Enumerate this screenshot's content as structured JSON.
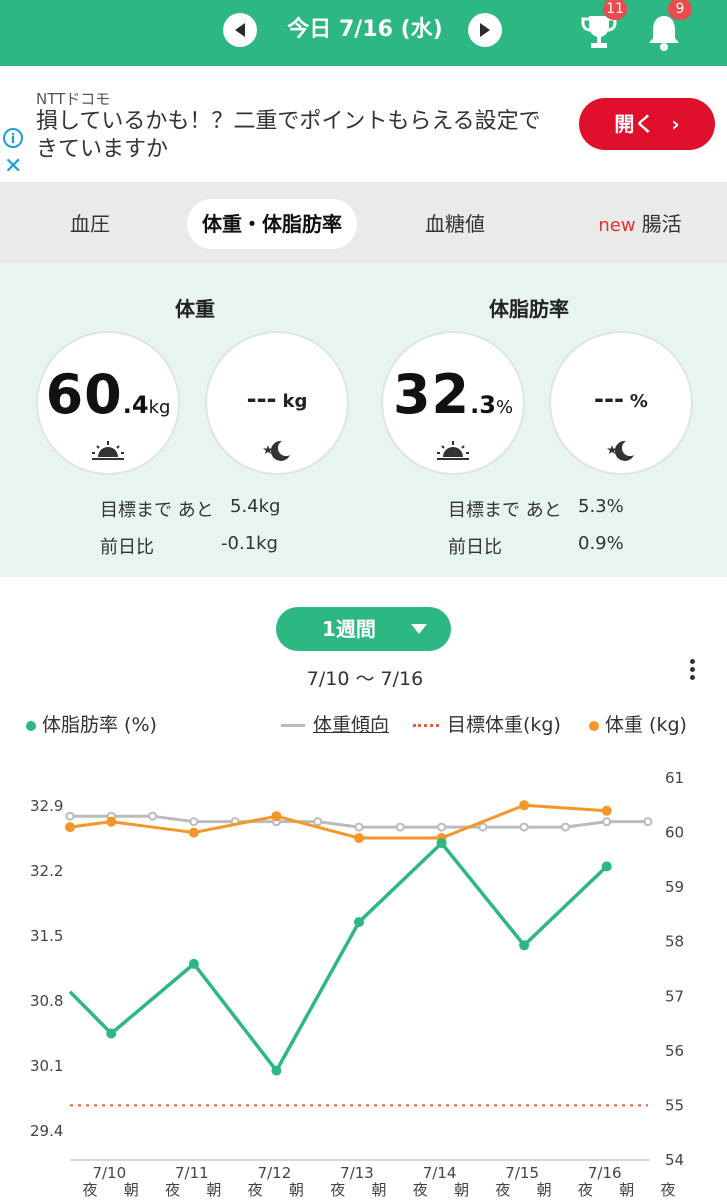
{
  "header": {
    "date_title": "今日 7/16 (水)",
    "trophy_badge": "11",
    "bell_badge": "9",
    "color": "#2db783"
  },
  "ad": {
    "sponsor": "NTTドコモ",
    "text": "損しているかも！？二重でポイントもらえる設定できていますか",
    "button": "開く",
    "info_icon": "i"
  },
  "tabs": [
    {
      "label": "血圧"
    },
    {
      "label": "体重・体脂肪率"
    },
    {
      "label": "血糖値"
    },
    {
      "label": "腸活",
      "tag": "new"
    }
  ],
  "summary": {
    "weight": {
      "title": "体重",
      "morning_int": "60",
      "morning_dec": ".4",
      "morning_unit": "kg",
      "night_value": "---",
      "night_unit": "kg",
      "goal_label": "目標まで あと",
      "goal_value": "5.4kg",
      "diff_label": "前日比",
      "diff_value": "-0.1kg"
    },
    "fat": {
      "title": "体脂肪率",
      "morning_int": "32",
      "morning_dec": ".3",
      "morning_unit": "%",
      "night_value": "---",
      "night_unit": "%",
      "goal_label": "目標まで あと",
      "goal_value": "5.3%",
      "diff_label": "前日比",
      "diff_value": "0.9%"
    }
  },
  "period": {
    "label": "1週間",
    "range": "7/10 〜 7/16"
  },
  "legend": {
    "fat": "体脂肪率 (%)",
    "trend": "体重傾向",
    "target": "目標体重(kg)",
    "weight": "体重 (kg)"
  },
  "chart_data": {
    "type": "line",
    "x": [
      "夜",
      "朝",
      "夜",
      "朝",
      "夜",
      "朝",
      "夜",
      "朝",
      "夜",
      "朝",
      "夜",
      "朝",
      "夜",
      "朝",
      "夜"
    ],
    "date_labels": [
      "7/10",
      "7/11",
      "7/12",
      "7/13",
      "7/14",
      "7/15",
      "7/16"
    ],
    "y_left_ticks": [
      "32.9",
      "32.2",
      "31.5",
      "30.8",
      "30.1",
      "29.4"
    ],
    "y_right_ticks": [
      "61",
      "60",
      "59",
      "58",
      "57",
      "56",
      "55",
      "54"
    ],
    "y_left_range": [
      29.4,
      32.9
    ],
    "y_right_range": [
      54,
      61
    ],
    "series": [
      {
        "name": "体脂肪率 (%)",
        "axis": "left",
        "color": "#2db783",
        "values": [
          30.9,
          30.45,
          null,
          31.2,
          null,
          30.05,
          null,
          31.65,
          null,
          32.5,
          null,
          31.4,
          null,
          32.25,
          null
        ],
        "marker_indices": [
          1,
          3,
          5,
          7,
          9,
          11,
          13
        ]
      },
      {
        "name": "体重傾向",
        "axis": "right",
        "color": "#bbbbbb",
        "values": [
          60.3,
          60.3,
          60.3,
          60.2,
          60.2,
          60.2,
          60.2,
          60.1,
          60.1,
          60.1,
          60.1,
          60.1,
          60.1,
          60.2,
          60.2
        ]
      },
      {
        "name": "体重 (kg)",
        "axis": "right",
        "color": "#f5962a",
        "values": [
          60.1,
          60.2,
          null,
          60.0,
          null,
          60.3,
          null,
          59.9,
          null,
          59.9,
          null,
          60.5,
          null,
          60.4,
          null
        ]
      },
      {
        "name": "目標体重(kg)",
        "axis": "right",
        "color": "#e85b3c",
        "constant": 55
      }
    ],
    "grid": false
  }
}
